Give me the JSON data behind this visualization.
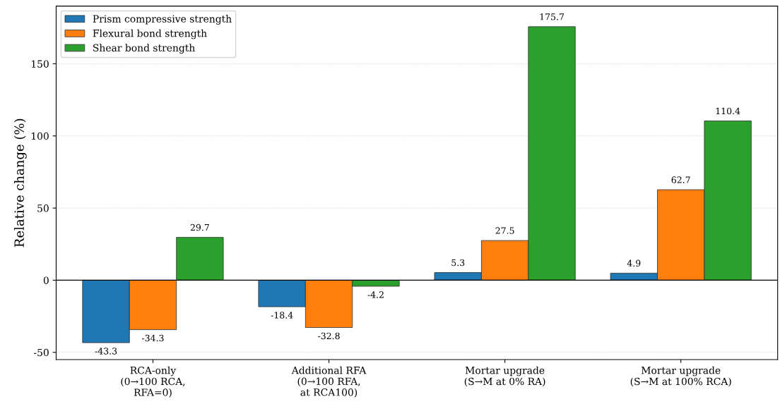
{
  "chart_data": {
    "type": "bar",
    "ylabel": "Relative change (%)",
    "categories": [
      "RCA-only\n(0→100 RCA,\nRFA=0)",
      "Additional RFA\n(0→100 RFA,\nat RCA100)",
      "Mortar upgrade\n(S→M at 0% RA)",
      "Mortar upgrade\n(S→M at 100% RCA)"
    ],
    "series": [
      {
        "name": "Prism compressive strength",
        "color": "#1f77b4",
        "values": [
          -43.3,
          -18.4,
          5.3,
          4.9
        ]
      },
      {
        "name": "Flexural bond strength",
        "color": "#ff7f0e",
        "values": [
          -34.3,
          -32.8,
          27.5,
          62.7
        ]
      },
      {
        "name": "Shear bond strength",
        "color": "#2ca02c",
        "values": [
          29.7,
          -4.2,
          175.7,
          110.4
        ]
      }
    ],
    "ylim": [
      -55,
      190
    ],
    "yticks": [
      -50,
      0,
      50,
      100,
      150
    ],
    "ref_lines": [
      {
        "axis": "y",
        "value": 0,
        "color": "#000000"
      }
    ],
    "data_labels": true,
    "grid": "y",
    "legend": "top left"
  }
}
